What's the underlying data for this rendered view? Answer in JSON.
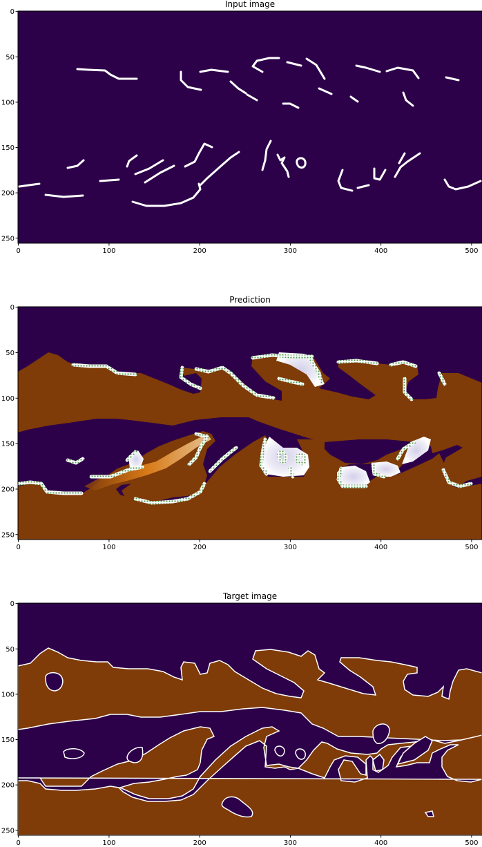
{
  "colors": {
    "background_purple": "#2d0149",
    "region_brown": "#7f3b08",
    "mask_white": "#ffffff",
    "uncertain_light": "#d8d6ec",
    "uncertain_orange": "#e0801a",
    "hatch_green": "#4f9a4f",
    "axis": "#000000"
  },
  "chart_data": [
    {
      "type": "heatmap",
      "title": "Input image",
      "xlim": [
        0,
        511
      ],
      "ylim": [
        255,
        0
      ],
      "x_ticks": [
        "0",
        "100",
        "200",
        "300",
        "400",
        "500"
      ],
      "y_ticks": [
        "0",
        "50",
        "100",
        "150",
        "200",
        "250"
      ],
      "content": "sparse white strokes on dark purple background"
    },
    {
      "type": "heatmap",
      "title": "Prediction",
      "xlim": [
        0,
        511
      ],
      "ylim": [
        255,
        0
      ],
      "x_ticks": [
        "0",
        "100",
        "200",
        "300",
        "400",
        "500"
      ],
      "y_ticks": [
        "0",
        "50",
        "100",
        "150",
        "200",
        "250"
      ],
      "content": "brown/purple segmentation with uncertainty band and hatched boundary"
    },
    {
      "type": "heatmap",
      "title": "Target image",
      "xlim": [
        0,
        511
      ],
      "ylim": [
        255,
        0
      ],
      "x_ticks": [
        "0",
        "100",
        "200",
        "300",
        "400",
        "500"
      ],
      "y_ticks": [
        "0",
        "50",
        "100",
        "150",
        "200",
        "250"
      ],
      "content": "brown/purple segmentation with white boundaries"
    }
  ]
}
